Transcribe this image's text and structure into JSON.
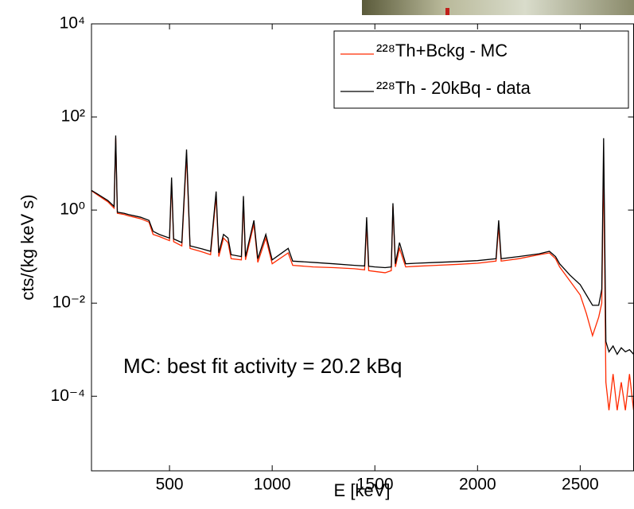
{
  "chart_data": {
    "type": "line",
    "xlabel": "E [keV]",
    "ylabel": "cts/(kg keV s)",
    "annotation": "MC: best fit activity = 20.2 kBq",
    "log_y": true,
    "grid": false,
    "legend": "upper right",
    "xlim": [
      120,
      2760
    ],
    "ylim": [
      2.5e-06,
      10000
    ],
    "xticks": [
      500,
      1000,
      1500,
      2000,
      2500
    ],
    "yticks": [
      {
        "value": 10000,
        "label": "10⁴"
      },
      {
        "value": 100,
        "label": "10²"
      },
      {
        "value": 1,
        "label": "10⁰"
      },
      {
        "value": 0.01,
        "label": "10⁻²"
      },
      {
        "value": 0.0001,
        "label": "10⁻⁴"
      }
    ],
    "x": [
      100,
      150,
      200,
      230,
      238,
      246,
      280,
      300,
      330,
      360,
      400,
      420,
      450,
      500,
      510,
      520,
      560,
      583,
      600,
      650,
      700,
      727,
      740,
      763,
      785,
      800,
      850,
      860,
      870,
      911,
      930,
      969,
      1000,
      1078,
      1100,
      1200,
      1300,
      1400,
      1450,
      1460,
      1470,
      1500,
      1550,
      1580,
      1588,
      1600,
      1620,
      1650,
      1700,
      1800,
      1900,
      2000,
      2090,
      2103,
      2115,
      2200,
      2300,
      2350,
      2380,
      2400,
      2450,
      2500,
      2530,
      2560,
      2590,
      2605,
      2614,
      2625,
      2640,
      2660,
      2680,
      2700,
      2720,
      2740,
      2760
    ],
    "series": [
      {
        "name": "²²⁸Th+Bckg - MC",
        "color": "#ff2a00",
        "values": [
          3,
          2.1,
          1.5,
          1.1,
          35,
          0.85,
          0.8,
          0.75,
          0.7,
          0.65,
          0.55,
          0.3,
          0.27,
          0.22,
          4,
          0.21,
          0.17,
          15,
          0.15,
          0.13,
          0.11,
          2,
          0.1,
          0.25,
          0.2,
          0.09,
          0.085,
          1.5,
          0.085,
          0.5,
          0.075,
          0.25,
          0.07,
          0.12,
          0.065,
          0.06,
          0.058,
          0.055,
          0.052,
          0.5,
          0.05,
          0.048,
          0.045,
          0.05,
          1.2,
          0.06,
          0.15,
          0.06,
          0.062,
          0.065,
          0.068,
          0.072,
          0.08,
          0.45,
          0.08,
          0.09,
          0.11,
          0.12,
          0.09,
          0.06,
          0.03,
          0.015,
          0.006,
          0.002,
          0.005,
          0.01,
          12,
          0.0002,
          5e-05,
          0.0003,
          5e-05,
          0.0002,
          5e-05,
          0.0003,
          5e-05
        ]
      },
      {
        "name": "²²⁸Th - 20kBq - data",
        "color": "#000000",
        "values": [
          3,
          2.2,
          1.6,
          1.2,
          40,
          0.9,
          0.85,
          0.8,
          0.75,
          0.7,
          0.6,
          0.35,
          0.3,
          0.25,
          5,
          0.24,
          0.2,
          20,
          0.17,
          0.15,
          0.13,
          2.5,
          0.12,
          0.3,
          0.25,
          0.11,
          0.1,
          2,
          0.1,
          0.6,
          0.09,
          0.3,
          0.085,
          0.15,
          0.08,
          0.075,
          0.07,
          0.065,
          0.063,
          0.7,
          0.062,
          0.06,
          0.058,
          0.06,
          1.4,
          0.07,
          0.2,
          0.07,
          0.072,
          0.075,
          0.078,
          0.082,
          0.09,
          0.6,
          0.09,
          0.1,
          0.115,
          0.13,
          0.1,
          0.07,
          0.04,
          0.025,
          0.015,
          0.009,
          0.009,
          0.02,
          35,
          0.0015,
          0.0009,
          0.0012,
          0.0008,
          0.0011,
          0.0009,
          0.001,
          0.0008
        ]
      }
    ]
  }
}
